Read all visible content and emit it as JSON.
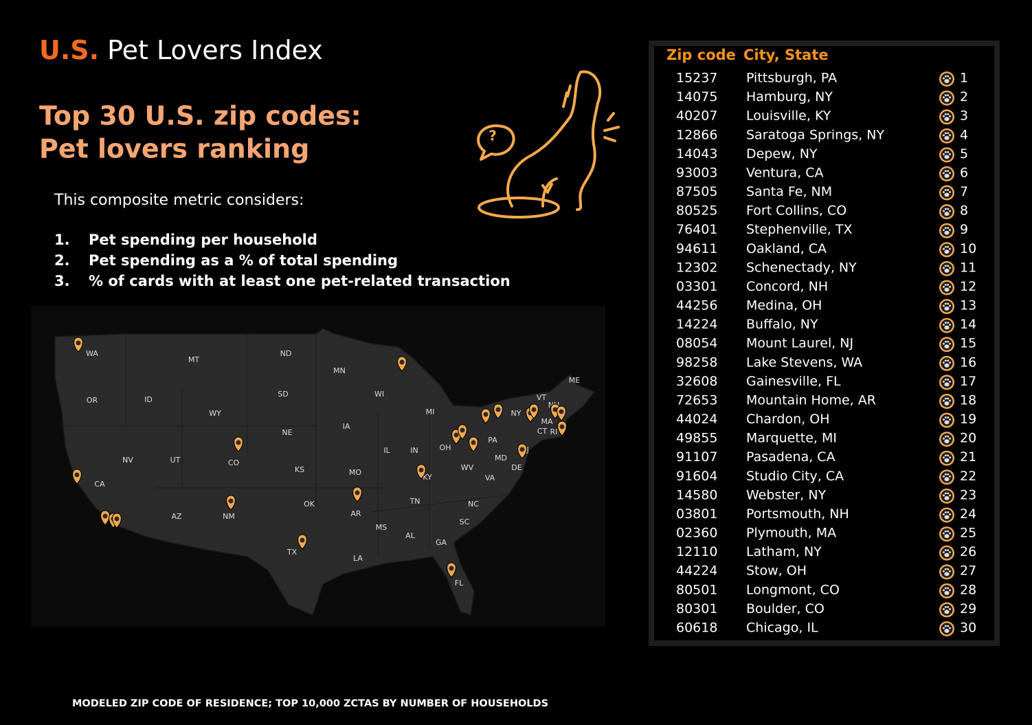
{
  "header": {
    "title_accent": "U.S.",
    "title": "Pet Lovers Index"
  },
  "subtitle": [
    "Top 30 U.S. zip codes:",
    "Pet lovers ranking"
  ],
  "illustration": {
    "bubble_text": "?"
  },
  "intro": "This composite metric considers:",
  "criteria": [
    {
      "number": "1.",
      "text": "Pet spending per household"
    },
    {
      "number": "2.",
      "text": "Pet spending as a % of total spending"
    },
    {
      "number": "3.",
      "text": "% of cards with at least one pet-related transaction"
    }
  ],
  "map": {
    "state_labels": [
      "WA",
      "MT",
      "ND",
      "MN",
      "OR",
      "ID",
      "WY",
      "SD",
      "WI",
      "MI",
      "ME",
      "VT",
      "NH",
      "NY",
      "MA",
      "CT",
      "RI",
      "IA",
      "NE",
      "PA",
      "NJ",
      "NV",
      "UT",
      "CO",
      "IL",
      "IN",
      "OH",
      "MD",
      "DE",
      "KS",
      "MO",
      "KY",
      "WV",
      "VA",
      "CA",
      "AZ",
      "NM",
      "OK",
      "AR",
      "TN",
      "NC",
      "SC",
      "MS",
      "AL",
      "GA",
      "TX",
      "LA",
      "FL"
    ]
  },
  "table": {
    "columns": [
      "Zip code",
      "City, State"
    ],
    "rows": [
      {
        "zip": "15237",
        "city": "Pittsburgh, PA",
        "rank": 1
      },
      {
        "zip": "14075",
        "city": "Hamburg, NY",
        "rank": 2
      },
      {
        "zip": "40207",
        "city": "Louisville, KY",
        "rank": 3
      },
      {
        "zip": "12866",
        "city": "Saratoga Springs, NY",
        "rank": 4
      },
      {
        "zip": "14043",
        "city": "Depew, NY",
        "rank": 5
      },
      {
        "zip": "93003",
        "city": "Ventura, CA",
        "rank": 6
      },
      {
        "zip": "87505",
        "city": "Santa Fe, NM",
        "rank": 7
      },
      {
        "zip": "80525",
        "city": "Fort Collins, CO",
        "rank": 8
      },
      {
        "zip": "76401",
        "city": "Stephenville, TX",
        "rank": 9
      },
      {
        "zip": "94611",
        "city": "Oakland, CA",
        "rank": 10
      },
      {
        "zip": "12302",
        "city": "Schenectady, NY",
        "rank": 11
      },
      {
        "zip": "03301",
        "city": "Concord, NH",
        "rank": 12
      },
      {
        "zip": "44256",
        "city": "Medina, OH",
        "rank": 13
      },
      {
        "zip": "14224",
        "city": "Buffalo, NY",
        "rank": 14
      },
      {
        "zip": "08054",
        "city": "Mount Laurel, NJ",
        "rank": 15
      },
      {
        "zip": "98258",
        "city": "Lake Stevens, WA",
        "rank": 16
      },
      {
        "zip": "32608",
        "city": "Gainesville, FL",
        "rank": 17
      },
      {
        "zip": "72653",
        "city": "Mountain Home, AR",
        "rank": 18
      },
      {
        "zip": "44024",
        "city": "Chardon, OH",
        "rank": 19
      },
      {
        "zip": "49855",
        "city": "Marquette, MI",
        "rank": 20
      },
      {
        "zip": "91107",
        "city": "Pasadena, CA",
        "rank": 21
      },
      {
        "zip": "91604",
        "city": "Studio City, CA",
        "rank": 22
      },
      {
        "zip": "14580",
        "city": "Webster, NY",
        "rank": 23
      },
      {
        "zip": "03801",
        "city": "Portsmouth, NH",
        "rank": 24
      },
      {
        "zip": "02360",
        "city": "Plymouth, MA",
        "rank": 25
      },
      {
        "zip": "12110",
        "city": "Latham, NY",
        "rank": 26
      },
      {
        "zip": "44224",
        "city": "Stow, OH",
        "rank": 27
      },
      {
        "zip": "80501",
        "city": "Longmont, CO",
        "rank": 28
      },
      {
        "zip": "80301",
        "city": "Boulder, CO",
        "rank": 29
      },
      {
        "zip": "60618",
        "city": "Chicago, IL",
        "rank": 30
      }
    ]
  },
  "footer": "MODELED ZIP CODE OF RESIDENCE; TOP 10,000 ZCTAS BY NUMBER OF HOUSEHOLDS"
}
